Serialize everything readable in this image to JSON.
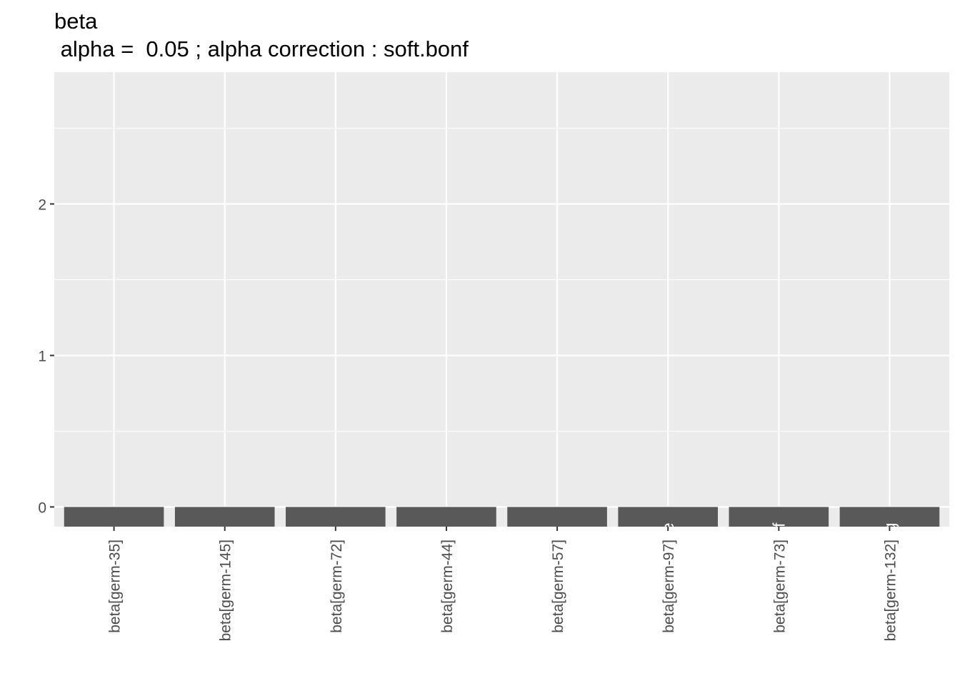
{
  "colors": {
    "panel_background": "#ebebeb",
    "grid": "#ffffff",
    "bar_fill": "#595959",
    "tick_text": "#4d4d4d",
    "tick_mark": "#333333",
    "bar_label_text": "#ffffff"
  },
  "chart_data": {
    "type": "bar",
    "title": "beta",
    "subtitle": " alpha =  0.05 ; alpha correction : soft.bonf",
    "xlabel": "",
    "ylabel": "",
    "categories": [
      "beta[germ-35]",
      "beta[germ-145]",
      "beta[germ-72]",
      "beta[germ-44]",
      "beta[germ-57]",
      "beta[germ-97]",
      "beta[germ-73]",
      "beta[germ-132]"
    ],
    "values": [
      -0.13,
      -0.13,
      -0.13,
      -0.13,
      -0.13,
      -0.13,
      -0.13,
      -0.13
    ],
    "bar_labels": [
      "",
      "",
      "",
      "",
      "",
      "e",
      "ef",
      "efg"
    ],
    "ylim": [
      -0.13,
      2.87
    ],
    "y_ticks": [
      0,
      1,
      2
    ],
    "y_tick_labels": [
      "0",
      "1",
      "2"
    ],
    "grid": true,
    "legend": "none"
  }
}
